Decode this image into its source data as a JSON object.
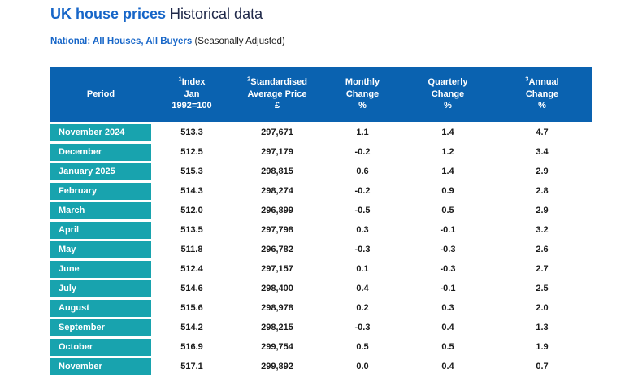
{
  "page": {
    "title_primary": "UK house prices",
    "title_secondary": " Historical data",
    "subtitle_bold": "National: All Houses, All Buyers",
    "subtitle_normal": " (Seasonally Adjusted)"
  },
  "colors": {
    "header_background": "#0a62b0",
    "period_background": "#18a3ae",
    "title_blue": "#1766c8",
    "heading_dark": "#20294a"
  },
  "chart_data": {
    "type": "table",
    "title": "UK house prices Historical data",
    "subtitle": "National: All Houses, All Buyers (Seasonally Adjusted)",
    "columns": [
      {
        "key": "period",
        "sup": "",
        "lines": [
          "Period"
        ]
      },
      {
        "key": "index",
        "sup": "1",
        "lines": [
          "Index",
          "Jan",
          "1992=100"
        ]
      },
      {
        "key": "price",
        "sup": "2",
        "lines": [
          "Standardised",
          "Average Price",
          "£"
        ]
      },
      {
        "key": "monthly",
        "sup": "",
        "lines": [
          "Monthly",
          "Change",
          "%"
        ]
      },
      {
        "key": "quarterly",
        "sup": "",
        "lines": [
          "Quarterly",
          "Change",
          "%"
        ]
      },
      {
        "key": "annual",
        "sup": "3",
        "lines": [
          "Annual",
          "Change",
          "%"
        ]
      }
    ],
    "rows": [
      [
        "November 2024",
        "513.3",
        "297,671",
        "1.1",
        "1.4",
        "4.7"
      ],
      [
        "December",
        "512.5",
        "297,179",
        "-0.2",
        "1.2",
        "3.4"
      ],
      [
        "January 2025",
        "515.3",
        "298,815",
        "0.6",
        "1.4",
        "2.9"
      ],
      [
        "February",
        "514.3",
        "298,274",
        "-0.2",
        "0.9",
        "2.8"
      ],
      [
        "March",
        "512.0",
        "296,899",
        "-0.5",
        "0.5",
        "2.9"
      ],
      [
        "April",
        "513.5",
        "297,798",
        "0.3",
        "-0.1",
        "3.2"
      ],
      [
        "May",
        "511.8",
        "296,782",
        "-0.3",
        "-0.3",
        "2.6"
      ],
      [
        "June",
        "512.4",
        "297,157",
        "0.1",
        "-0.3",
        "2.7"
      ],
      [
        "July",
        "514.6",
        "298,400",
        "0.4",
        "-0.1",
        "2.5"
      ],
      [
        "August",
        "515.6",
        "298,978",
        "0.2",
        "0.3",
        "2.0"
      ],
      [
        "September",
        "514.2",
        "298,215",
        "-0.3",
        "0.4",
        "1.3"
      ],
      [
        "October",
        "516.9",
        "299,754",
        "0.5",
        "0.5",
        "1.9"
      ],
      [
        "November",
        "517.1",
        "299,892",
        "0.0",
        "0.4",
        "0.7"
      ]
    ]
  }
}
